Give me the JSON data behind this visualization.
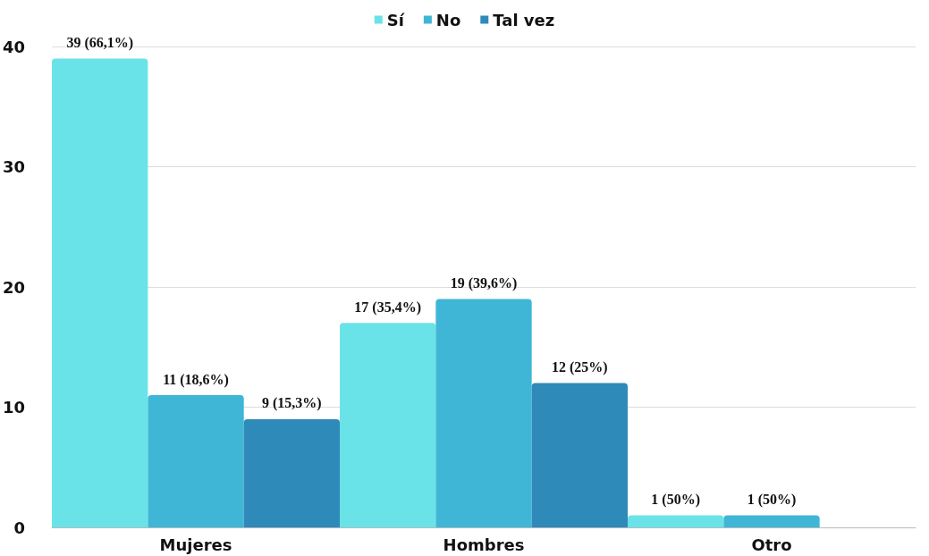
{
  "chart_data": {
    "type": "bar",
    "categories": [
      "Mujeres",
      "Hombres",
      "Otro"
    ],
    "series": [
      {
        "name": "Sí",
        "color": "#6ae3e8",
        "values": [
          39,
          17,
          1
        ],
        "value_labels": [
          "39 (66,1%)",
          "17 (35,4%)",
          "1 (50%)"
        ]
      },
      {
        "name": "No",
        "color": "#40b6d6",
        "values": [
          11,
          19,
          1
        ],
        "value_labels": [
          "11 (18,6%)",
          "19 (39,6%)",
          "1 (50%)"
        ]
      },
      {
        "name": "Tal vez",
        "color": "#2e8ab8",
        "values": [
          9,
          12,
          null
        ],
        "value_labels": [
          "9 (15,3%)",
          "12 (25%)",
          null
        ]
      }
    ],
    "ylim": [
      0,
      40
    ],
    "yticks": [
      0,
      10,
      20,
      30,
      40
    ],
    "grid": "y",
    "legend": "top"
  }
}
